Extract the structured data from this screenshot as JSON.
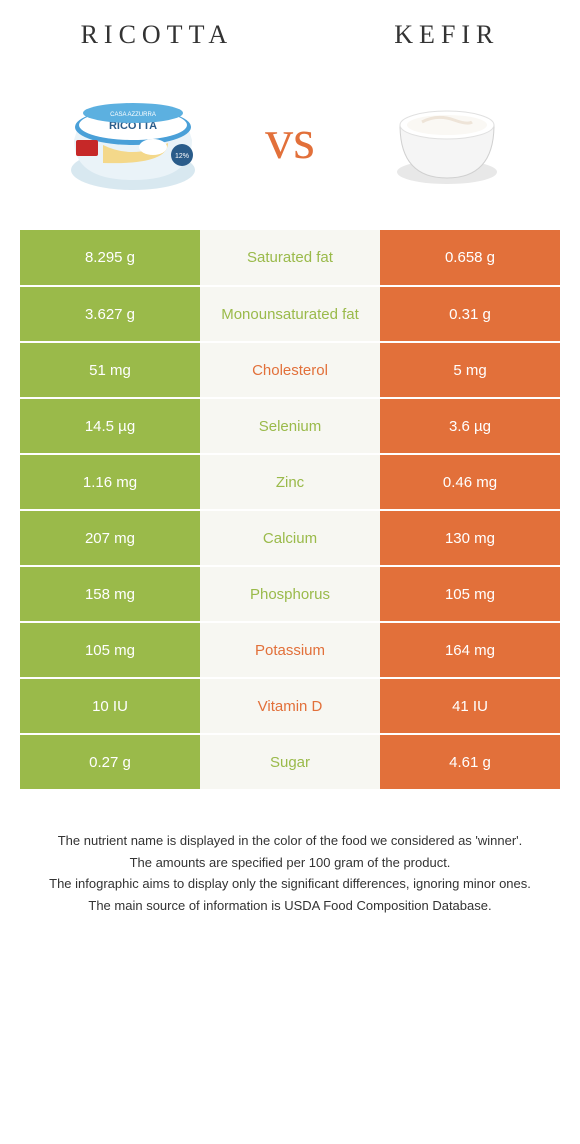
{
  "header": {
    "left_title": "Ricotta",
    "right_title": "Kefir",
    "vs": "vs"
  },
  "colors": {
    "green": "#9aba4a",
    "orange": "#e2703a",
    "mid_bg": "#f7f7f2",
    "text_white": "#ffffff"
  },
  "table": {
    "rows": [
      {
        "left": "8.295 g",
        "label": "Saturated fat",
        "right": "0.658 g",
        "winner": "left"
      },
      {
        "left": "3.627 g",
        "label": "Monounsaturated fat",
        "right": "0.31 g",
        "winner": "left"
      },
      {
        "left": "51 mg",
        "label": "Cholesterol",
        "right": "5 mg",
        "winner": "right"
      },
      {
        "left": "14.5 µg",
        "label": "Selenium",
        "right": "3.6 µg",
        "winner": "left"
      },
      {
        "left": "1.16 mg",
        "label": "Zinc",
        "right": "0.46 mg",
        "winner": "left"
      },
      {
        "left": "207 mg",
        "label": "Calcium",
        "right": "130 mg",
        "winner": "left"
      },
      {
        "left": "158 mg",
        "label": "Phosphorus",
        "right": "105 mg",
        "winner": "left"
      },
      {
        "left": "105 mg",
        "label": "Potassium",
        "right": "164 mg",
        "winner": "right"
      },
      {
        "left": "10 IU",
        "label": "Vitamin D",
        "right": "41 IU",
        "winner": "right"
      },
      {
        "left": "0.27 g",
        "label": "Sugar",
        "right": "4.61 g",
        "winner": "left"
      }
    ]
  },
  "footer": {
    "line1": "The nutrient name is displayed in the color of the food we considered as 'winner'.",
    "line2": "The amounts are specified per 100 gram of the product.",
    "line3": "The infographic aims to display only the significant differences, ignoring minor ones.",
    "line4": "The main source of information is USDA Food Composition Database."
  }
}
